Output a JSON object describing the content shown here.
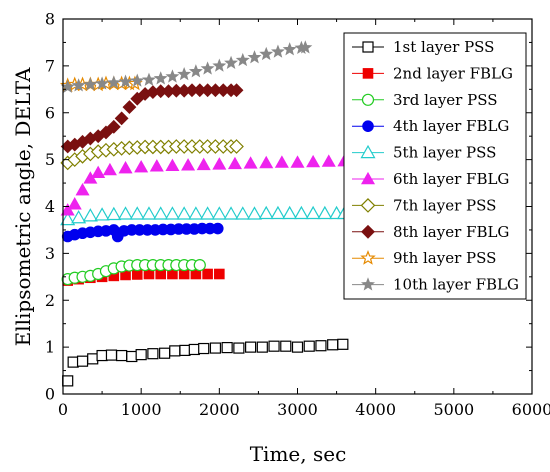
{
  "chart_data": {
    "type": "scatter",
    "title": "",
    "xlabel": "Time, sec",
    "ylabel": "Ellipsometric angle, DELTA",
    "xlim": [
      0,
      6000
    ],
    "ylim": [
      0,
      8
    ],
    "xticks": [
      0,
      1000,
      2000,
      3000,
      4000,
      5000,
      6000
    ],
    "yticks": [
      0,
      1,
      2,
      3,
      4,
      5,
      6,
      7,
      8
    ],
    "grid": false,
    "legend_position": "top-right",
    "series": [
      {
        "name": "1st layer PSS",
        "marker": "square-open",
        "color": "#000000",
        "points": [
          [
            60,
            0.28
          ],
          [
            130,
            0.68
          ],
          [
            250,
            0.7
          ],
          [
            380,
            0.75
          ],
          [
            500,
            0.82
          ],
          [
            620,
            0.83
          ],
          [
            750,
            0.82
          ],
          [
            880,
            0.8
          ],
          [
            1000,
            0.84
          ],
          [
            1150,
            0.86
          ],
          [
            1300,
            0.87
          ],
          [
            1430,
            0.92
          ],
          [
            1560,
            0.93
          ],
          [
            1680,
            0.95
          ],
          [
            1800,
            0.97
          ],
          [
            1950,
            0.98
          ],
          [
            2100,
            0.99
          ],
          [
            2250,
            0.98
          ],
          [
            2400,
            1.0
          ],
          [
            2550,
            1.0
          ],
          [
            2700,
            1.02
          ],
          [
            2850,
            1.02
          ],
          [
            3000,
            1.0
          ],
          [
            3150,
            1.02
          ],
          [
            3300,
            1.03
          ],
          [
            3450,
            1.05
          ],
          [
            3580,
            1.06
          ]
        ]
      },
      {
        "name": "2nd layer FBLG",
        "marker": "square-filled",
        "color": "#ee0000",
        "points": [
          [
            60,
            2.42
          ],
          [
            200,
            2.45
          ],
          [
            350,
            2.48
          ],
          [
            500,
            2.5
          ],
          [
            650,
            2.52
          ],
          [
            800,
            2.54
          ],
          [
            950,
            2.55
          ],
          [
            1100,
            2.56
          ],
          [
            1250,
            2.56
          ],
          [
            1400,
            2.56
          ],
          [
            1550,
            2.56
          ],
          [
            1700,
            2.56
          ],
          [
            1850,
            2.56
          ],
          [
            2000,
            2.56
          ]
        ]
      },
      {
        "name": "3rd layer PSS",
        "marker": "circle-open",
        "color": "#22cc22",
        "points": [
          [
            60,
            2.45
          ],
          [
            150,
            2.48
          ],
          [
            250,
            2.5
          ],
          [
            350,
            2.52
          ],
          [
            450,
            2.56
          ],
          [
            550,
            2.62
          ],
          [
            650,
            2.68
          ],
          [
            750,
            2.72
          ],
          [
            850,
            2.74
          ],
          [
            950,
            2.75
          ],
          [
            1050,
            2.75
          ],
          [
            1150,
            2.75
          ],
          [
            1250,
            2.75
          ],
          [
            1350,
            2.75
          ],
          [
            1450,
            2.75
          ],
          [
            1550,
            2.75
          ],
          [
            1650,
            2.75
          ],
          [
            1750,
            2.75
          ]
        ]
      },
      {
        "name": "4th layer FBLG",
        "marker": "circle-filled",
        "color": "#0000ee",
        "points": [
          [
            60,
            3.36
          ],
          [
            150,
            3.4
          ],
          [
            250,
            3.43
          ],
          [
            350,
            3.45
          ],
          [
            450,
            3.47
          ],
          [
            550,
            3.48
          ],
          [
            650,
            3.5
          ],
          [
            700,
            3.36
          ],
          [
            780,
            3.48
          ],
          [
            880,
            3.5
          ],
          [
            980,
            3.5
          ],
          [
            1080,
            3.5
          ],
          [
            1180,
            3.5
          ],
          [
            1280,
            3.51
          ],
          [
            1380,
            3.51
          ],
          [
            1480,
            3.52
          ],
          [
            1580,
            3.52
          ],
          [
            1680,
            3.52
          ],
          [
            1780,
            3.53
          ],
          [
            1880,
            3.53
          ],
          [
            1980,
            3.53
          ]
        ]
      },
      {
        "name": "5th layer PSS",
        "marker": "triangle-open",
        "color": "#22cccc",
        "points": [
          [
            60,
            3.72
          ],
          [
            200,
            3.76
          ],
          [
            350,
            3.8
          ],
          [
            500,
            3.82
          ],
          [
            650,
            3.83
          ],
          [
            800,
            3.84
          ],
          [
            950,
            3.84
          ],
          [
            1100,
            3.84
          ],
          [
            1250,
            3.84
          ],
          [
            1400,
            3.84
          ],
          [
            1550,
            3.84
          ],
          [
            1700,
            3.84
          ],
          [
            1850,
            3.84
          ],
          [
            2000,
            3.84
          ],
          [
            2150,
            3.84
          ],
          [
            2300,
            3.84
          ],
          [
            2450,
            3.84
          ],
          [
            2600,
            3.85
          ],
          [
            2750,
            3.85
          ],
          [
            2900,
            3.85
          ],
          [
            3050,
            3.85
          ],
          [
            3200,
            3.85
          ],
          [
            3350,
            3.85
          ],
          [
            3500,
            3.85
          ],
          [
            3600,
            3.85
          ]
        ]
      },
      {
        "name": "6th layer FBLG",
        "marker": "triangle-filled",
        "color": "#ee22ee",
        "points": [
          [
            60,
            3.92
          ],
          [
            150,
            4.05
          ],
          [
            250,
            4.35
          ],
          [
            350,
            4.6
          ],
          [
            450,
            4.72
          ],
          [
            600,
            4.78
          ],
          [
            800,
            4.82
          ],
          [
            1000,
            4.84
          ],
          [
            1200,
            4.86
          ],
          [
            1400,
            4.87
          ],
          [
            1600,
            4.88
          ],
          [
            1800,
            4.89
          ],
          [
            2000,
            4.9
          ],
          [
            2200,
            4.91
          ],
          [
            2400,
            4.92
          ],
          [
            2600,
            4.93
          ],
          [
            2800,
            4.94
          ],
          [
            3000,
            4.94
          ],
          [
            3200,
            4.95
          ],
          [
            3400,
            4.96
          ],
          [
            3600,
            4.97
          ]
        ]
      },
      {
        "name": "7th layer PSS",
        "marker": "diamond-open",
        "color": "#808000",
        "points": [
          [
            60,
            4.93
          ],
          [
            150,
            5.0
          ],
          [
            250,
            5.07
          ],
          [
            350,
            5.12
          ],
          [
            450,
            5.17
          ],
          [
            550,
            5.2
          ],
          [
            650,
            5.22
          ],
          [
            750,
            5.24
          ],
          [
            850,
            5.25
          ],
          [
            950,
            5.26
          ],
          [
            1050,
            5.27
          ],
          [
            1150,
            5.27
          ],
          [
            1250,
            5.27
          ],
          [
            1350,
            5.27
          ],
          [
            1450,
            5.28
          ],
          [
            1550,
            5.28
          ],
          [
            1650,
            5.28
          ],
          [
            1750,
            5.28
          ],
          [
            1850,
            5.28
          ],
          [
            1950,
            5.28
          ],
          [
            2050,
            5.28
          ],
          [
            2150,
            5.28
          ],
          [
            2220,
            5.28
          ]
        ]
      },
      {
        "name": "8th layer FBLG",
        "marker": "diamond-filled",
        "color": "#7a1010",
        "points": [
          [
            60,
            5.28
          ],
          [
            150,
            5.32
          ],
          [
            250,
            5.38
          ],
          [
            350,
            5.45
          ],
          [
            450,
            5.5
          ],
          [
            550,
            5.58
          ],
          [
            650,
            5.7
          ],
          [
            750,
            5.88
          ],
          [
            850,
            6.12
          ],
          [
            950,
            6.3
          ],
          [
            1050,
            6.4
          ],
          [
            1150,
            6.44
          ],
          [
            1250,
            6.46
          ],
          [
            1350,
            6.46
          ],
          [
            1450,
            6.47
          ],
          [
            1550,
            6.47
          ],
          [
            1650,
            6.48
          ],
          [
            1750,
            6.48
          ],
          [
            1850,
            6.48
          ],
          [
            1950,
            6.48
          ],
          [
            2050,
            6.48
          ],
          [
            2150,
            6.48
          ],
          [
            2220,
            6.48
          ]
        ]
      },
      {
        "name": "9th layer PSS",
        "marker": "star-open",
        "color": "#e68a00",
        "points": [
          [
            60,
            6.58
          ],
          [
            150,
            6.6
          ],
          [
            250,
            6.6
          ],
          [
            350,
            6.6
          ],
          [
            450,
            6.6
          ],
          [
            550,
            6.62
          ],
          [
            650,
            6.62
          ],
          [
            750,
            6.62
          ],
          [
            850,
            6.62
          ],
          [
            920,
            6.62
          ]
        ]
      },
      {
        "name": "10th layer FBLG",
        "marker": "star-filled",
        "color": "#888888",
        "points": [
          [
            60,
            6.55
          ],
          [
            200,
            6.58
          ],
          [
            350,
            6.6
          ],
          [
            500,
            6.62
          ],
          [
            650,
            6.64
          ],
          [
            800,
            6.66
          ],
          [
            950,
            6.68
          ],
          [
            1100,
            6.7
          ],
          [
            1250,
            6.73
          ],
          [
            1400,
            6.77
          ],
          [
            1550,
            6.82
          ],
          [
            1700,
            6.88
          ],
          [
            1850,
            6.94
          ],
          [
            2000,
            7.0
          ],
          [
            2150,
            7.06
          ],
          [
            2300,
            7.12
          ],
          [
            2450,
            7.18
          ],
          [
            2600,
            7.25
          ],
          [
            2750,
            7.3
          ],
          [
            2900,
            7.35
          ],
          [
            3050,
            7.38
          ],
          [
            3100,
            7.39
          ]
        ]
      }
    ]
  }
}
